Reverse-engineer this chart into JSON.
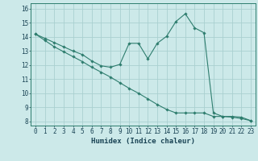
{
  "xlabel": "Humidex (Indice chaleur)",
  "bg_color": "#cce9e9",
  "grid_color": "#aad0d0",
  "line_color": "#2e7d6e",
  "xlim": [
    -0.5,
    23.5
  ],
  "ylim": [
    7.7,
    16.4
  ],
  "xticks": [
    0,
    1,
    2,
    3,
    4,
    5,
    6,
    7,
    8,
    9,
    10,
    11,
    12,
    13,
    14,
    15,
    16,
    17,
    18,
    19,
    20,
    21,
    22,
    23
  ],
  "yticks": [
    8,
    9,
    10,
    11,
    12,
    13,
    14,
    15,
    16
  ],
  "curve1_x": [
    0,
    1,
    2,
    3,
    4,
    5,
    6,
    7,
    8,
    9,
    10,
    11,
    12,
    13,
    14,
    15,
    16,
    17,
    18,
    19,
    20,
    21,
    22,
    23
  ],
  "curve1_y": [
    14.2,
    13.9,
    13.6,
    13.3,
    13.0,
    12.75,
    12.3,
    11.95,
    11.85,
    12.05,
    13.55,
    13.55,
    12.45,
    13.55,
    14.05,
    15.1,
    15.65,
    14.65,
    14.3,
    8.6,
    8.35,
    8.35,
    8.3,
    8.05
  ],
  "curve2_x": [
    0,
    1,
    2,
    3,
    4,
    5,
    6,
    7,
    8,
    9,
    10,
    11,
    12,
    13,
    14,
    15,
    16,
    17,
    18,
    19,
    20,
    21,
    22,
    23
  ],
  "curve2_y": [
    14.2,
    13.75,
    13.3,
    12.95,
    12.6,
    12.25,
    11.85,
    11.5,
    11.15,
    10.75,
    10.35,
    10.0,
    9.6,
    9.2,
    8.85,
    8.6,
    8.6,
    8.6,
    8.6,
    8.35,
    8.35,
    8.3,
    8.2,
    8.05
  ]
}
